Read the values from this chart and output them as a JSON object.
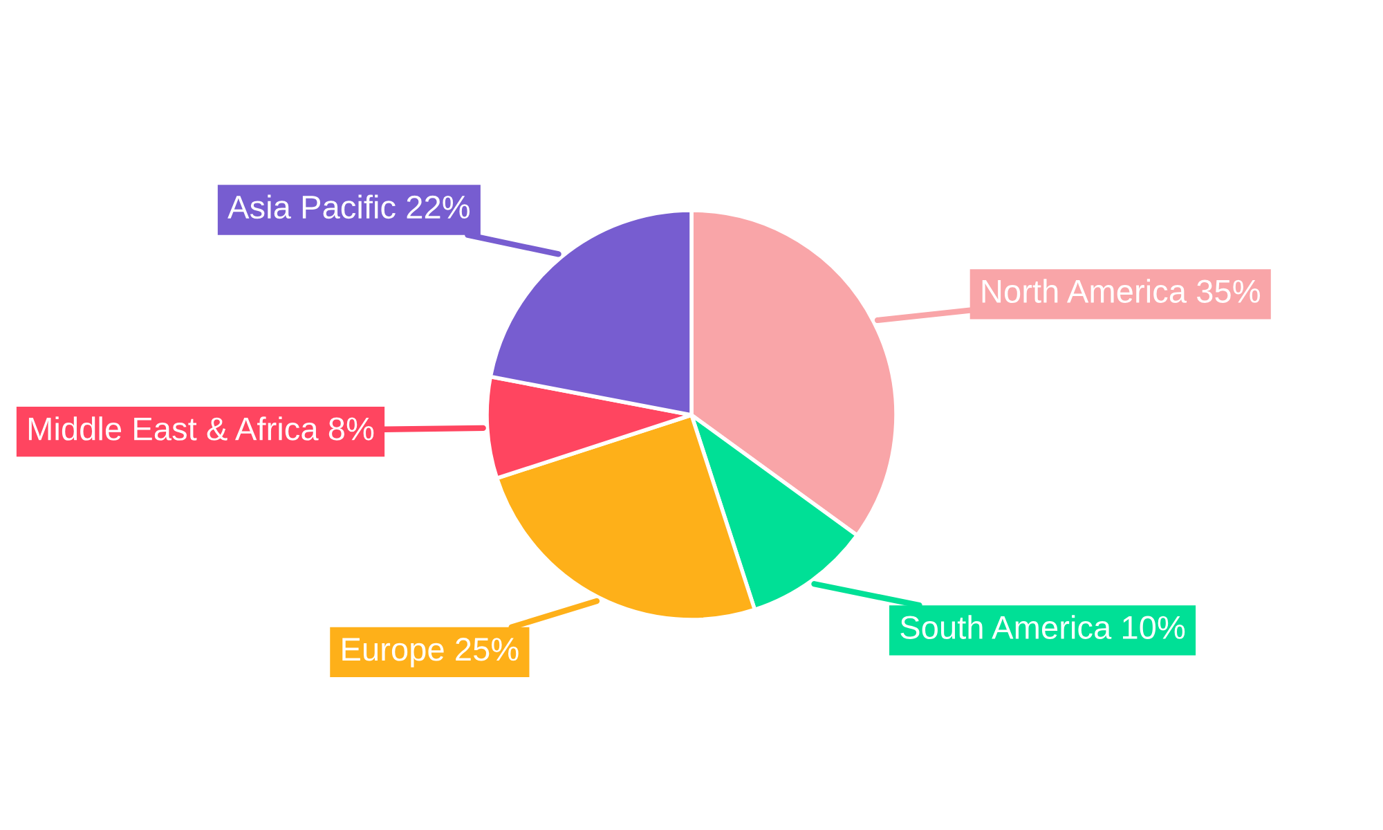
{
  "chart_data": {
    "type": "pie",
    "categories": [
      "North America",
      "South America",
      "Europe",
      "Middle East & Africa",
      "Asia Pacific"
    ],
    "values": [
      35,
      10,
      25,
      8,
      22
    ],
    "colors": [
      "#f9a5a8",
      "#00e096",
      "#feb019",
      "#ff4560",
      "#775dd0"
    ],
    "value_labels": [
      "35%",
      "10%",
      "25%",
      "8%",
      "22%"
    ],
    "legend": false
  }
}
